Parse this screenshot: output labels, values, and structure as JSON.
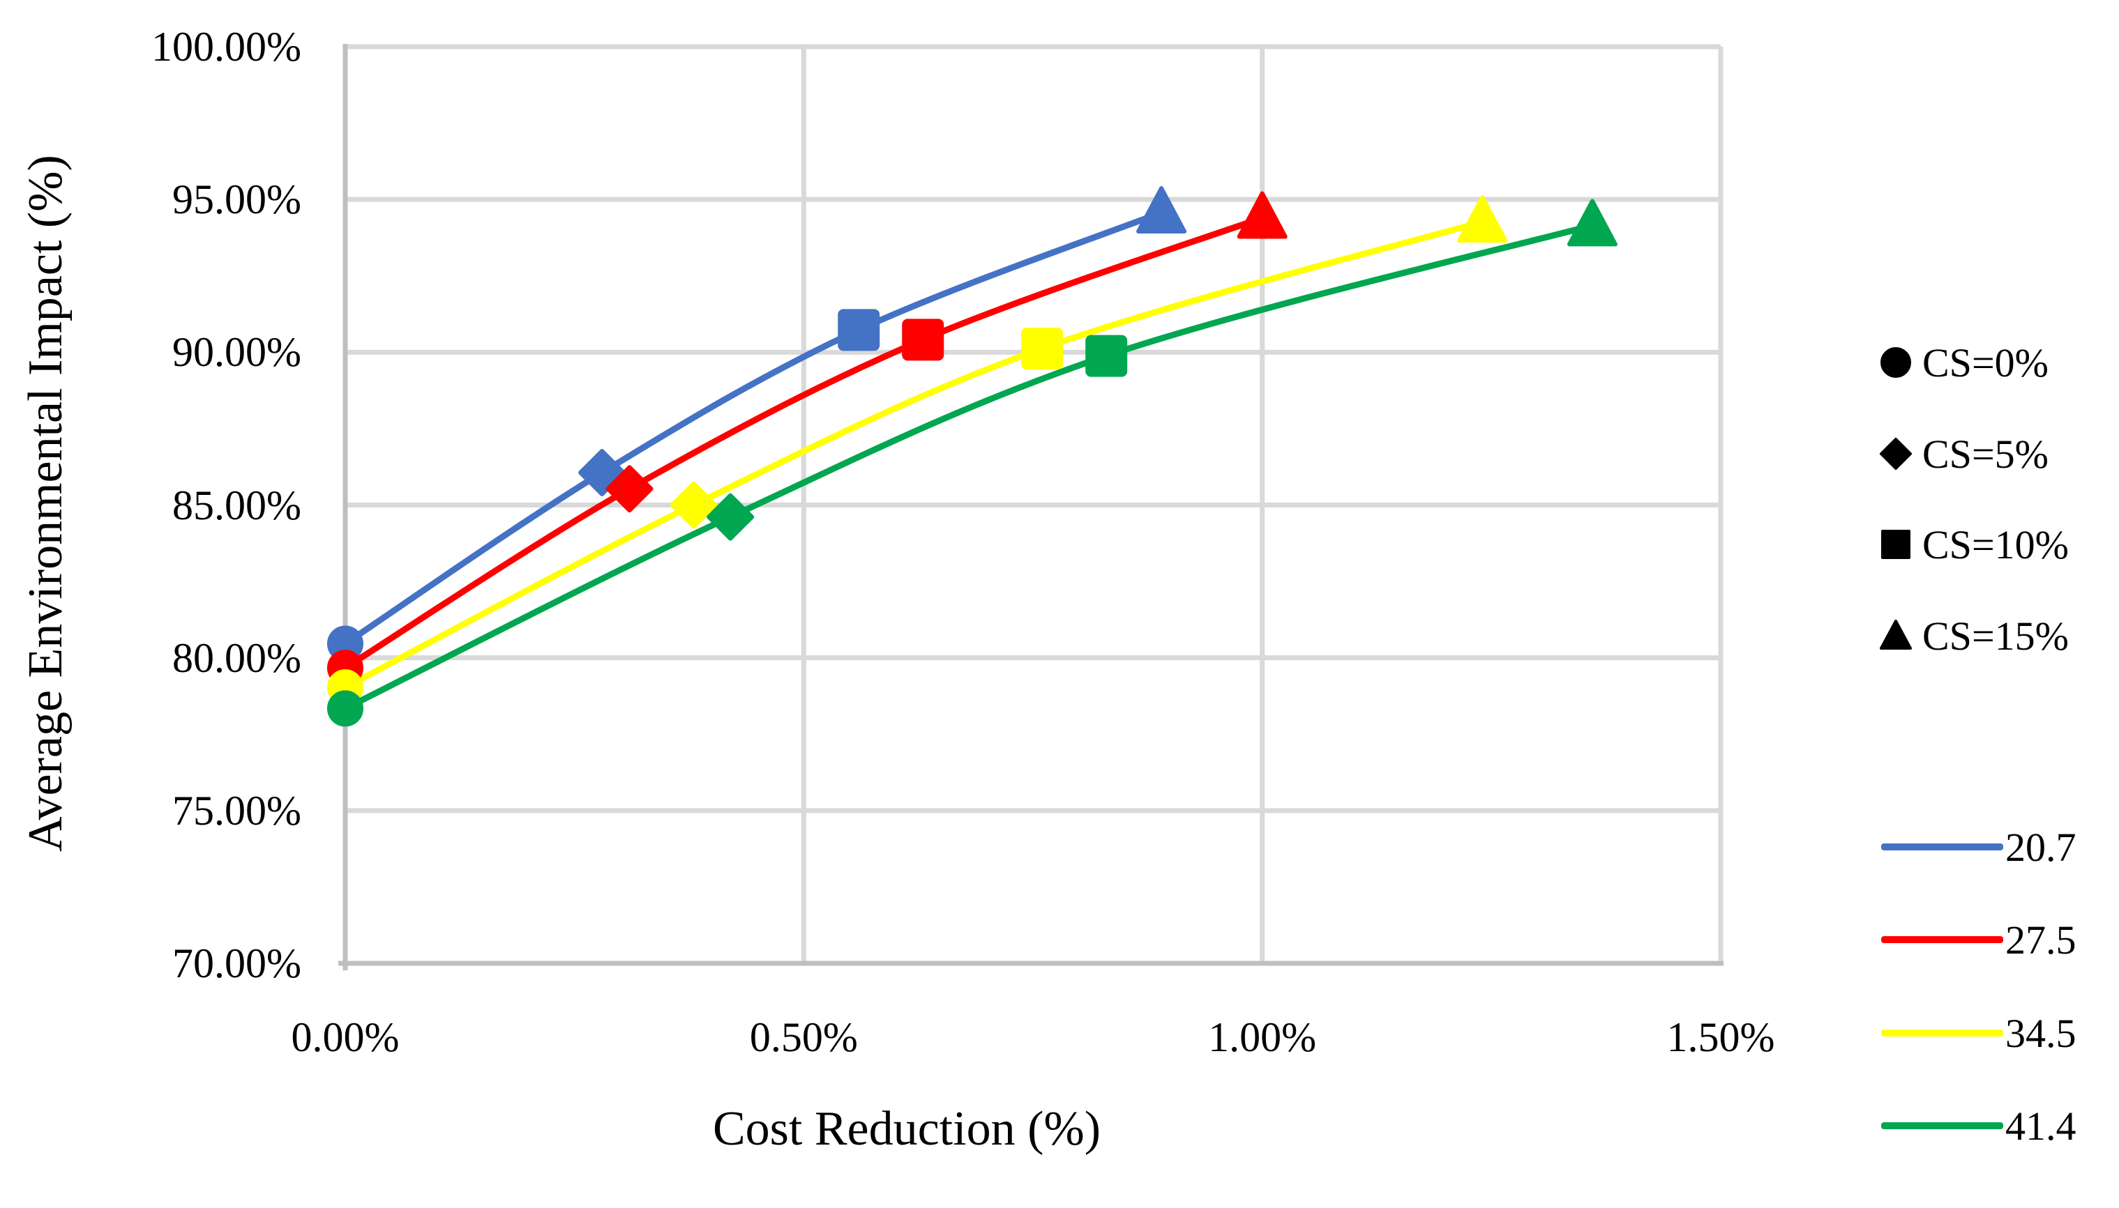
{
  "chart_data": {
    "type": "line",
    "title": "",
    "xlabel": "Cost Reduction (%)",
    "ylabel": "Average Environmental Impact (%)",
    "xlim": [
      0,
      1.5
    ],
    "ylim": [
      70,
      100
    ],
    "x_tick_labels": [
      "0.00%",
      "0.50%",
      "1.00%",
      "1.50%"
    ],
    "y_tick_labels": [
      "100.00%",
      "95.00%",
      "90.00%",
      "85.00%",
      "80.00%",
      "75.00%",
      "70.00%"
    ],
    "grid": true,
    "legend_position": "right",
    "shape_legend": [
      {
        "label": "CS=0%",
        "shape": "circle"
      },
      {
        "label": "CS=5%",
        "shape": "diamond"
      },
      {
        "label": "CS=10%",
        "shape": "square"
      },
      {
        "label": "CS=15%",
        "shape": "triangle"
      }
    ],
    "series": [
      {
        "name": "20.7",
        "color": "#4472C4",
        "points": [
          {
            "cs": "CS=0%",
            "shape": "circle",
            "x": 0.0,
            "y": 80.46
          },
          {
            "cs": "CS=5%",
            "shape": "diamond",
            "x": 0.28,
            "y": 86.06
          },
          {
            "cs": "CS=10%",
            "shape": "square",
            "x": 0.56,
            "y": 90.73
          },
          {
            "cs": "CS=15%",
            "shape": "triangle",
            "x": 0.89,
            "y": 94.57
          }
        ]
      },
      {
        "name": "27.5",
        "color": "#FF0000",
        "points": [
          {
            "cs": "CS=0%",
            "shape": "circle",
            "x": 0.0,
            "y": 79.67
          },
          {
            "cs": "CS=5%",
            "shape": "diamond",
            "x": 0.31,
            "y": 85.53
          },
          {
            "cs": "CS=10%",
            "shape": "square",
            "x": 0.63,
            "y": 90.41
          },
          {
            "cs": "CS=15%",
            "shape": "triangle",
            "x": 1.0,
            "y": 94.4
          }
        ]
      },
      {
        "name": "34.5",
        "color": "#FFFF00",
        "points": [
          {
            "cs": "CS=0%",
            "shape": "circle",
            "x": 0.0,
            "y": 79.03
          },
          {
            "cs": "CS=5%",
            "shape": "diamond",
            "x": 0.38,
            "y": 85.0
          },
          {
            "cs": "CS=10%",
            "shape": "square",
            "x": 0.76,
            "y": 90.12
          },
          {
            "cs": "CS=15%",
            "shape": "triangle",
            "x": 1.24,
            "y": 94.27
          }
        ]
      },
      {
        "name": "41.4",
        "color": "#00A650",
        "points": [
          {
            "cs": "CS=0%",
            "shape": "circle",
            "x": 0.0,
            "y": 78.34
          },
          {
            "cs": "CS=5%",
            "shape": "diamond",
            "x": 0.42,
            "y": 84.61
          },
          {
            "cs": "CS=10%",
            "shape": "square",
            "x": 0.83,
            "y": 89.88
          },
          {
            "cs": "CS=15%",
            "shape": "triangle",
            "x": 1.36,
            "y": 94.15
          }
        ]
      }
    ]
  },
  "colors": {
    "grid": "#D9D9D9",
    "axis": "#BFBFBF",
    "background": "#FFFFFF",
    "legend_text": "#000000"
  }
}
